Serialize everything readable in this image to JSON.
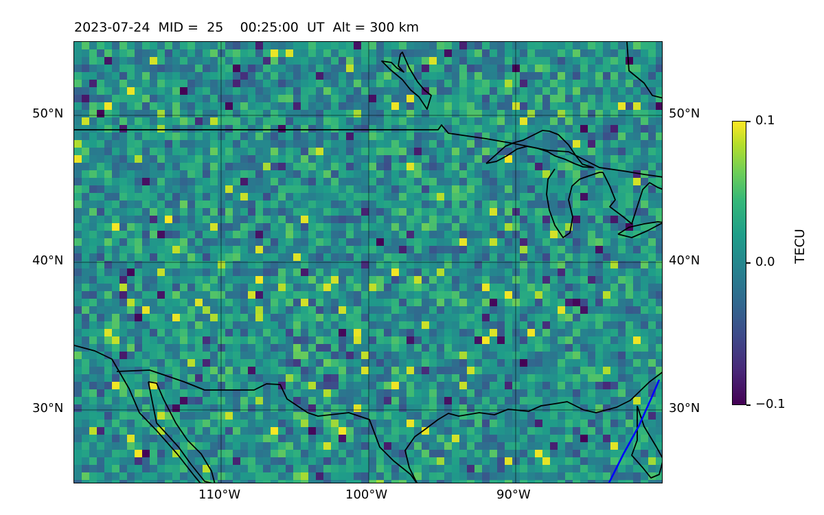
{
  "title": {
    "date": "2023-07-24",
    "mid_label": "MID =",
    "mid_value": "25",
    "time": "00:25:00",
    "time_unit": "UT",
    "alt_label": "Alt = 300 km"
  },
  "axes": {
    "lat_ticks": [
      "50°N",
      "40°N",
      "30°N"
    ],
    "lon_ticks": [
      "110°W",
      "100°W",
      "90°W"
    ]
  },
  "colorbar": {
    "label": "TECU",
    "ticks": [
      "0.1",
      "0.0",
      "−0.1"
    ],
    "vmin": -0.1,
    "vmax": 0.1,
    "colormap": "viridis"
  },
  "map": {
    "extent": {
      "lon_min": -120,
      "lon_max": -80,
      "lat_min": 25,
      "lat_max": 55
    },
    "grid": true,
    "coastline_color": "#000000",
    "track_color": "#0000ff"
  }
}
